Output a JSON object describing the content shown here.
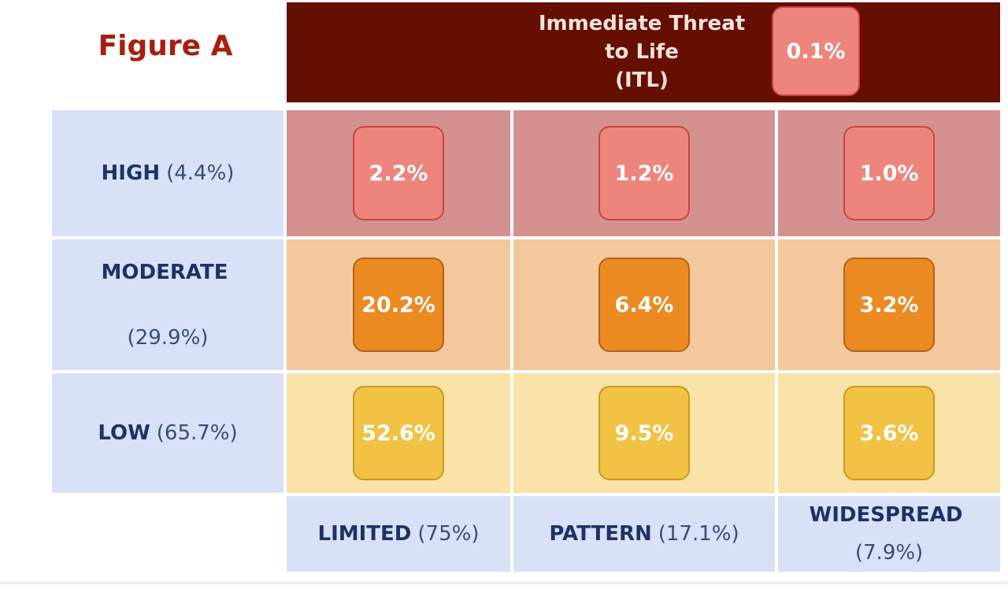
{
  "title": "Figure A",
  "itl": {
    "label_lines": [
      "Immediate Threat",
      "to Life",
      "(ITL)"
    ],
    "value": "0.1%"
  },
  "rows": [
    {
      "label": "HIGH",
      "share": "(4.4%)",
      "cells": [
        "2.2%",
        "1.2%",
        "1.0%"
      ]
    },
    {
      "label": "MODERATE",
      "share": "(29.9%)",
      "cells": [
        "20.2%",
        "6.4%",
        "3.2%"
      ]
    },
    {
      "label": "LOW",
      "share": "(65.7%)",
      "cells": [
        "52.6%",
        "9.5%",
        "3.6%"
      ]
    }
  ],
  "columns": [
    {
      "label": "LIMITED",
      "share": "(75%)"
    },
    {
      "label": "PATTERN",
      "share": "(17.1%)"
    },
    {
      "label": "WIDESPREAD",
      "share": "(7.9%)"
    }
  ]
}
